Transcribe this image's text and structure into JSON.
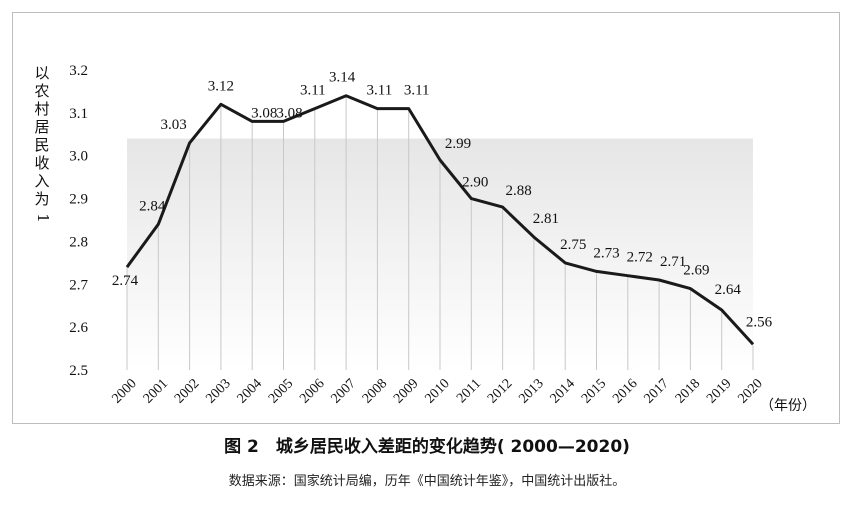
{
  "chart_data": {
    "type": "line",
    "ylabel": "以农村居民收入为1",
    "xunit": "（年份）",
    "ylim": [
      2.5,
      3.2
    ],
    "yticks": [
      "2.5",
      "2.6",
      "2.7",
      "2.8",
      "2.9",
      "3.0",
      "3.1",
      "3.2"
    ],
    "categories": [
      "2000",
      "2001",
      "2002",
      "2003",
      "2004",
      "2005",
      "2006",
      "2007",
      "2008",
      "2009",
      "2010",
      "2011",
      "2012",
      "2013",
      "2014",
      "2015",
      "2016",
      "2017",
      "2018",
      "2019",
      "2020"
    ],
    "values": [
      2.74,
      2.84,
      3.03,
      3.12,
      3.08,
      3.08,
      3.11,
      3.14,
      3.11,
      3.11,
      2.99,
      2.9,
      2.88,
      2.81,
      2.75,
      2.73,
      2.72,
      2.71,
      2.69,
      2.64,
      2.56
    ],
    "labels": [
      "2.74",
      "2.84",
      "3.03",
      "3.12",
      "3.08",
      "3.08",
      "3.11",
      "3.14",
      "3.11",
      "3.11",
      "2.99",
      "2.90",
      "2.88",
      "2.81",
      "2.75",
      "2.73",
      "2.72",
      "2.71",
      "2.69",
      "2.64",
      "2.56"
    ],
    "grid": "vertical",
    "line_color": "#1a1a1a"
  },
  "caption": "图 2　城乡居民收入差距的变化趋势( 2000—2020)",
  "source": "数据来源：国家统计局编，历年《中国统计年鉴》，中国统计出版社。"
}
